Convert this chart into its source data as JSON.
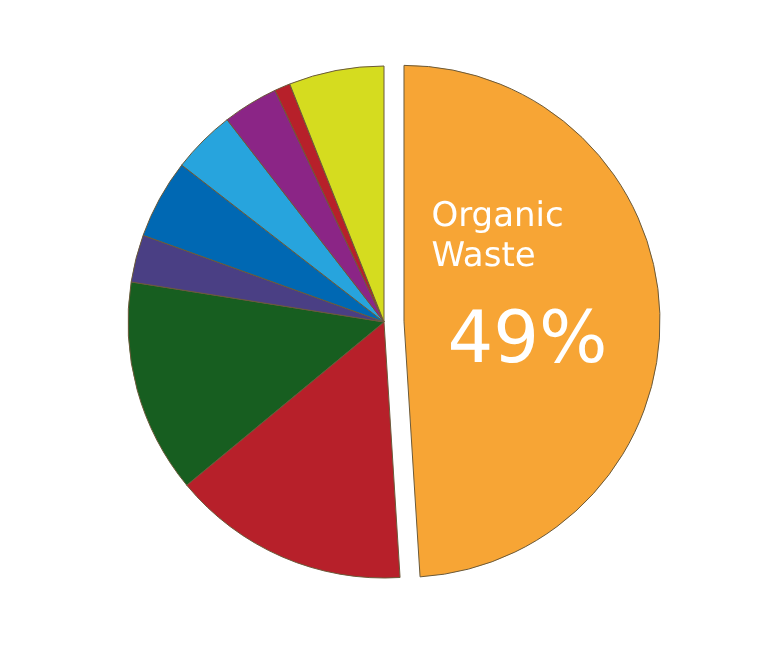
{
  "chart_data": {
    "type": "pie",
    "categories": [
      "Organic Waste",
      null,
      null,
      null,
      null,
      null,
      null,
      null,
      null
    ],
    "values": [
      49,
      15,
      13.5,
      3,
      5,
      4,
      3.5,
      1,
      6
    ],
    "colors": [
      "#f7a535",
      "#b7202a",
      "#175e20",
      "#4a3f84",
      "#0068b3",
      "#27a4dd",
      "#8b2586",
      "#b7202a",
      "#d5dc1f"
    ],
    "value_labels": [
      "49%",
      null,
      null,
      null,
      null,
      null,
      null,
      null,
      null
    ],
    "legend": false
  }
}
